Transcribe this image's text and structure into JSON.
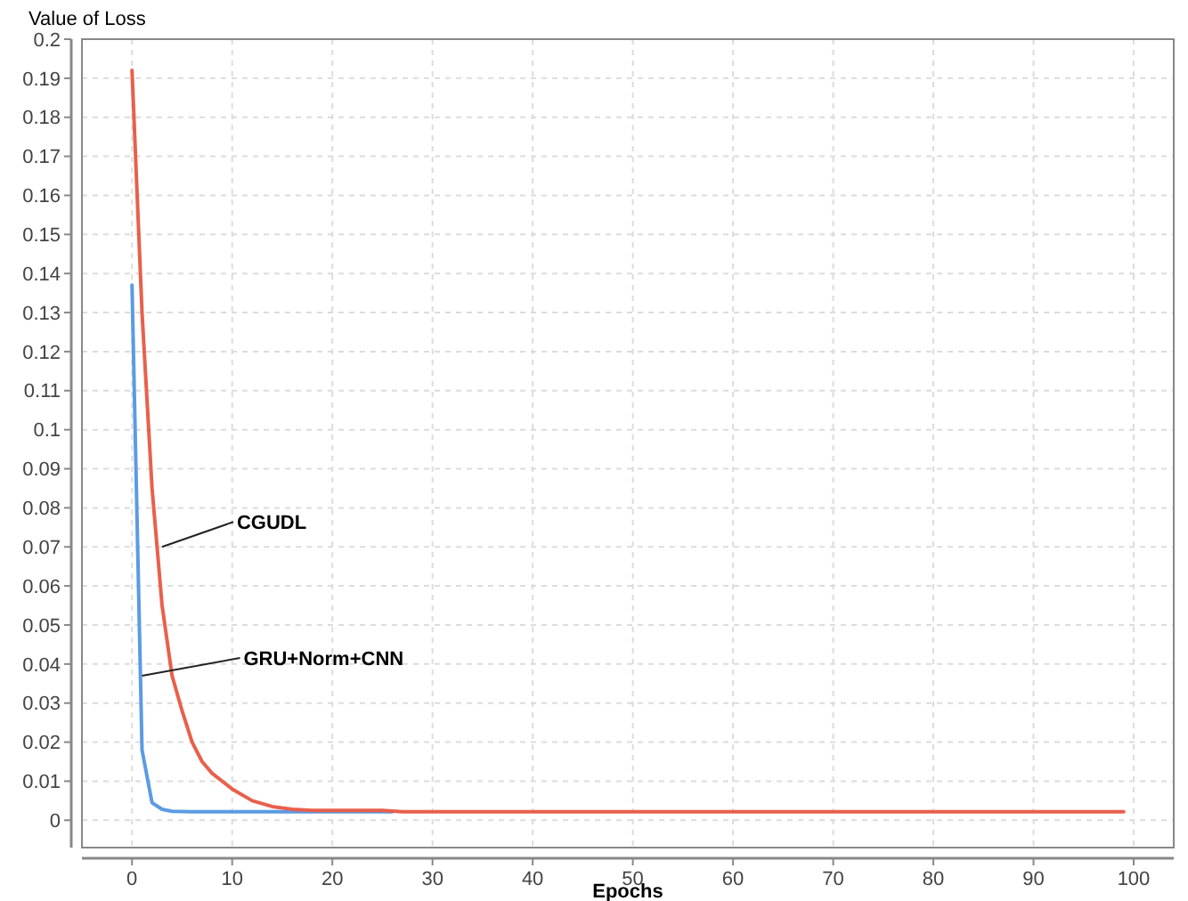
{
  "chart_data": {
    "type": "line",
    "xlabel": "Epochs",
    "ylabel": "Value of Loss",
    "xlim": [
      -5,
      104
    ],
    "ylim": [
      -0.007,
      0.2
    ],
    "xticks": [
      0,
      10,
      20,
      30,
      40,
      50,
      60,
      70,
      80,
      90,
      100
    ],
    "yticks": [
      0,
      0.01,
      0.02,
      0.03,
      0.04,
      0.05,
      0.06,
      0.07,
      0.08,
      0.09,
      0.1,
      0.11,
      0.12,
      0.13,
      0.14,
      0.15,
      0.16,
      0.17,
      0.18,
      0.19,
      0.2
    ],
    "grid": true,
    "line_style": "solid",
    "marker": "none",
    "series": [
      {
        "color": "#5b9be2",
        "x": [
          0,
          1,
          2,
          3,
          4,
          6,
          10,
          20,
          26
        ],
        "values": [
          0.137,
          0.018,
          0.0045,
          0.0028,
          0.0023,
          0.0022,
          0.0022,
          0.0022,
          0.0022
        ]
      },
      {
        "color": "#e8604c",
        "x": [
          0,
          1,
          2,
          3,
          4,
          5,
          6,
          7,
          8,
          10,
          12,
          14,
          16,
          18,
          20,
          25,
          27,
          50,
          99
        ],
        "values": [
          0.192,
          0.13,
          0.085,
          0.055,
          0.037,
          0.028,
          0.02,
          0.015,
          0.012,
          0.008,
          0.005,
          0.0035,
          0.0028,
          0.0025,
          0.0025,
          0.0025,
          0.0022,
          0.0022,
          0.0022
        ]
      }
    ],
    "annotations": [
      {
        "text": "CGUDL",
        "x": 3,
        "y": 0.07
      },
      {
        "text": "GRU+Norm+CNN",
        "x": 1,
        "y": 0.037
      }
    ]
  }
}
